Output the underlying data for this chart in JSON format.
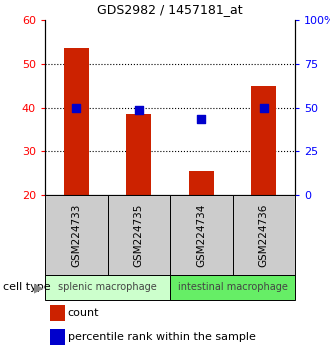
{
  "title": "GDS2982 / 1457181_at",
  "samples": [
    "GSM224733",
    "GSM224735",
    "GSM224734",
    "GSM224736"
  ],
  "counts": [
    53.5,
    38.5,
    25.5,
    45.0
  ],
  "percentile_ranks": [
    50.0,
    48.5,
    43.5,
    50.0
  ],
  "ylim_left": [
    20,
    60
  ],
  "ylim_right": [
    0,
    100
  ],
  "yticks_left": [
    20,
    30,
    40,
    50,
    60
  ],
  "yticks_right": [
    0,
    25,
    50,
    75,
    100
  ],
  "ytick_labels_right": [
    "0",
    "25",
    "50",
    "75",
    "100%"
  ],
  "bar_color": "#cc2200",
  "dot_color": "#0000cc",
  "bar_bottom": 20,
  "cell_types": [
    {
      "label": "splenic macrophage",
      "samples": [
        0,
        1
      ],
      "color": "#ccffcc"
    },
    {
      "label": "intestinal macrophage",
      "samples": [
        2,
        3
      ],
      "color": "#66ee66"
    }
  ],
  "cell_type_label": "cell type",
  "legend_count_label": "count",
  "legend_percentile_label": "percentile rank within the sample",
  "grid_yticks": [
    30,
    40,
    50
  ],
  "sample_box_color": "#cccccc",
  "bar_width": 0.4
}
